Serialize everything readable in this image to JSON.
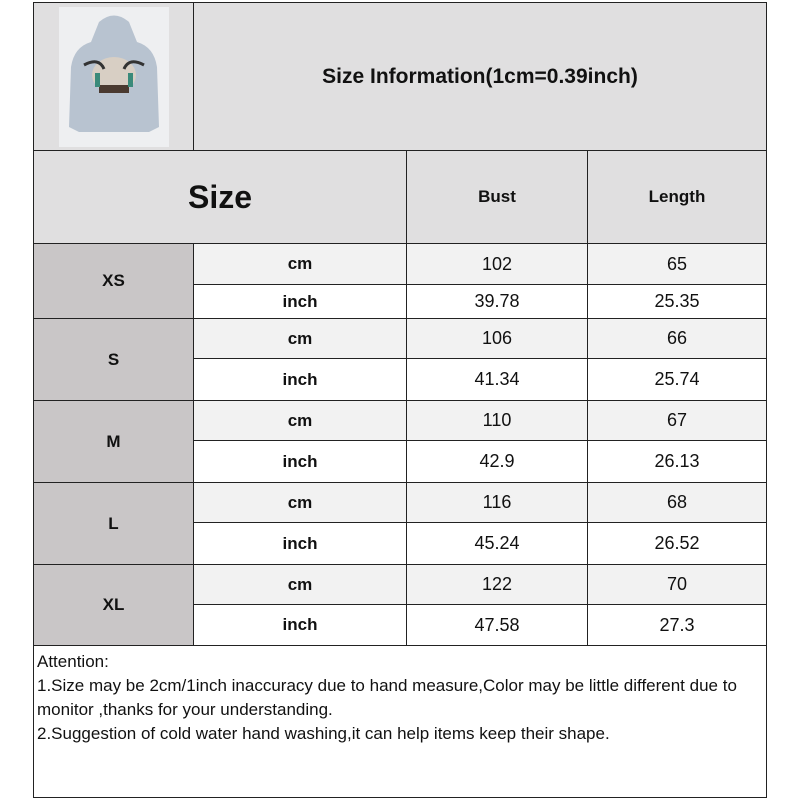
{
  "title": "Size Information(1cm=0.39inch)",
  "product_image": "light-blue hoodie with bull skull graphic",
  "header": {
    "size": "Size",
    "bust": "Bust",
    "length": "Length"
  },
  "rows": [
    {
      "size": "XS",
      "cm": {
        "label": "cm",
        "bust": "102",
        "length": "65"
      },
      "inch": {
        "label": "inch",
        "bust": "39.78",
        "length": "25.35"
      }
    },
    {
      "size": "S",
      "cm": {
        "label": "cm",
        "bust": "106",
        "length": "66"
      },
      "inch": {
        "label": "inch",
        "bust": "41.34",
        "length": "25.74"
      }
    },
    {
      "size": "M",
      "cm": {
        "label": "cm",
        "bust": "110",
        "length": "67"
      },
      "inch": {
        "label": "inch",
        "bust": "42.9",
        "length": "26.13"
      }
    },
    {
      "size": "L",
      "cm": {
        "label": "cm",
        "bust": "116",
        "length": "68"
      },
      "inch": {
        "label": "inch",
        "bust": "45.24",
        "length": "26.52"
      }
    },
    {
      "size": "XL",
      "cm": {
        "label": "cm",
        "bust": "122",
        "length": "70"
      },
      "inch": {
        "label": "inch",
        "bust": "47.58",
        "length": "27.3"
      }
    }
  ],
  "attention": {
    "heading": "Attention:",
    "line1": "1.Size may be 2cm/1inch inaccuracy due to hand measure,Color may be little different due to monitor ,thanks for your understanding.",
    "line2": "2.Suggestion of cold water hand washing,it can help items keep their shape."
  }
}
